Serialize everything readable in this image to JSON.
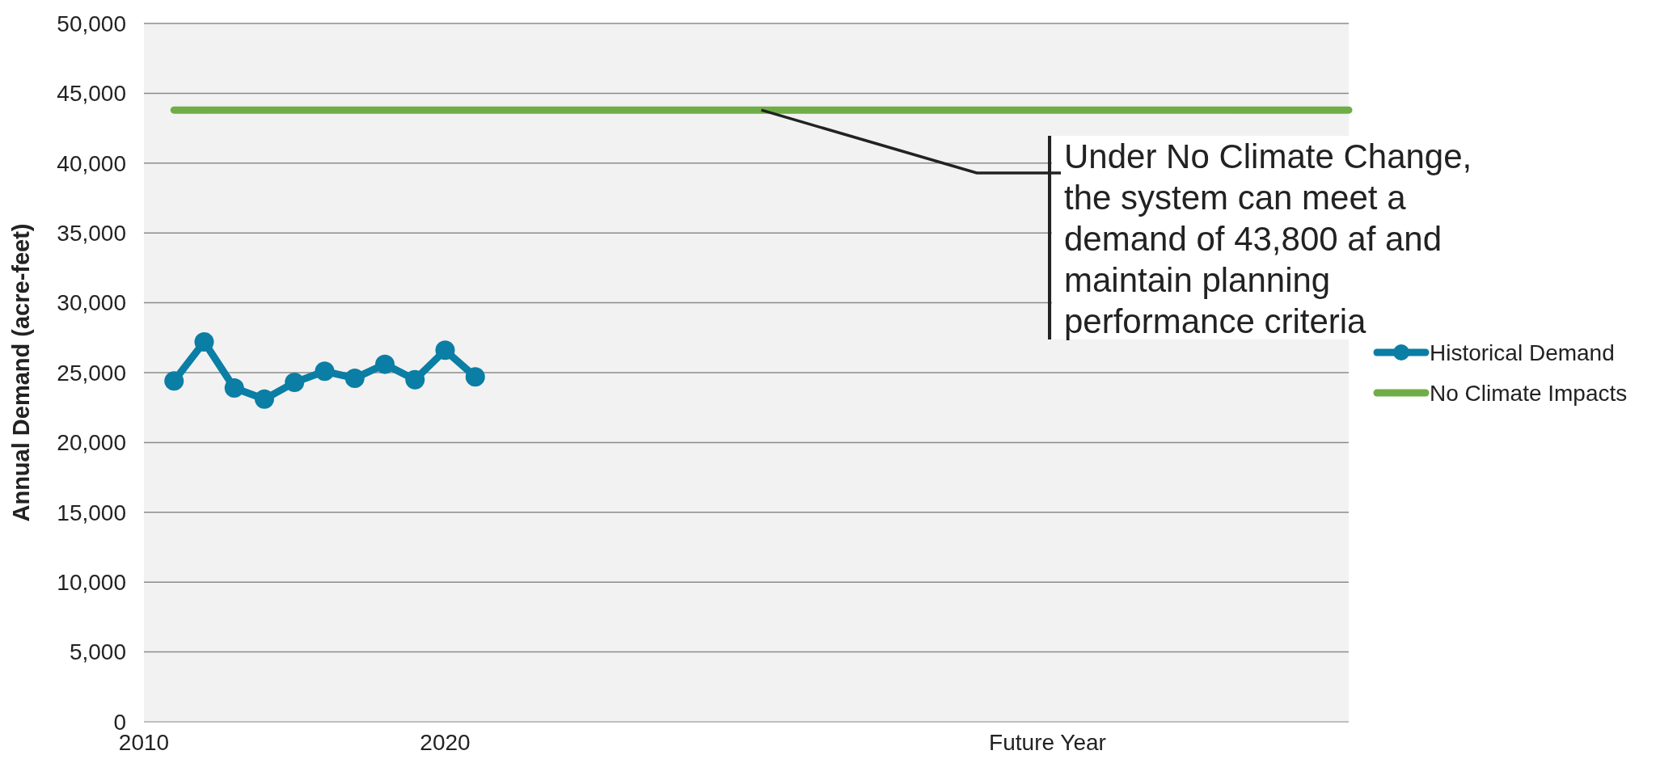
{
  "chart_data": {
    "type": "line",
    "ylabel": "Annual Demand (acre-feet)",
    "xlim": [
      2010,
      2050
    ],
    "xticks": [
      2010,
      2020,
      {
        "value": 2040,
        "label": "Future Year"
      }
    ],
    "ylim": [
      0,
      50000
    ],
    "yticks": [
      0,
      {
        "value": 5000,
        "label": "5,000"
      },
      {
        "value": 10000,
        "label": "10,000"
      },
      {
        "value": 15000,
        "label": "15,000"
      },
      {
        "value": 20000,
        "label": "20,000"
      },
      {
        "value": 25000,
        "label": "25,000"
      },
      {
        "value": 30000,
        "label": "30,000"
      },
      {
        "value": 35000,
        "label": "35,000"
      },
      {
        "value": 40000,
        "label": "40,000"
      },
      {
        "value": 45000,
        "label": "45,000"
      },
      {
        "value": 50000,
        "label": "50,000"
      }
    ],
    "grid": "y",
    "legend": "right",
    "series": [
      {
        "name": "Historical Demand",
        "color": "#0a7ea4",
        "marker": "circle",
        "x": [
          2011,
          2012,
          2013,
          2014,
          2015,
          2016,
          2017,
          2018,
          2019,
          2020,
          2021
        ],
        "values": [
          24400,
          27200,
          23900,
          23100,
          24300,
          25100,
          24600,
          25600,
          24500,
          26600,
          24700
        ]
      },
      {
        "name": "No Climate Impacts",
        "color": "#70ad47",
        "marker": "none",
        "x": [
          2011,
          2050
        ],
        "values": [
          43800,
          43800
        ]
      }
    ],
    "annotations": [
      {
        "text": "Under No Climate Change, the system can meet a demand of 43,800 af and maintain planning performance criteria",
        "x": 2030.5,
        "y": 43800
      }
    ]
  }
}
